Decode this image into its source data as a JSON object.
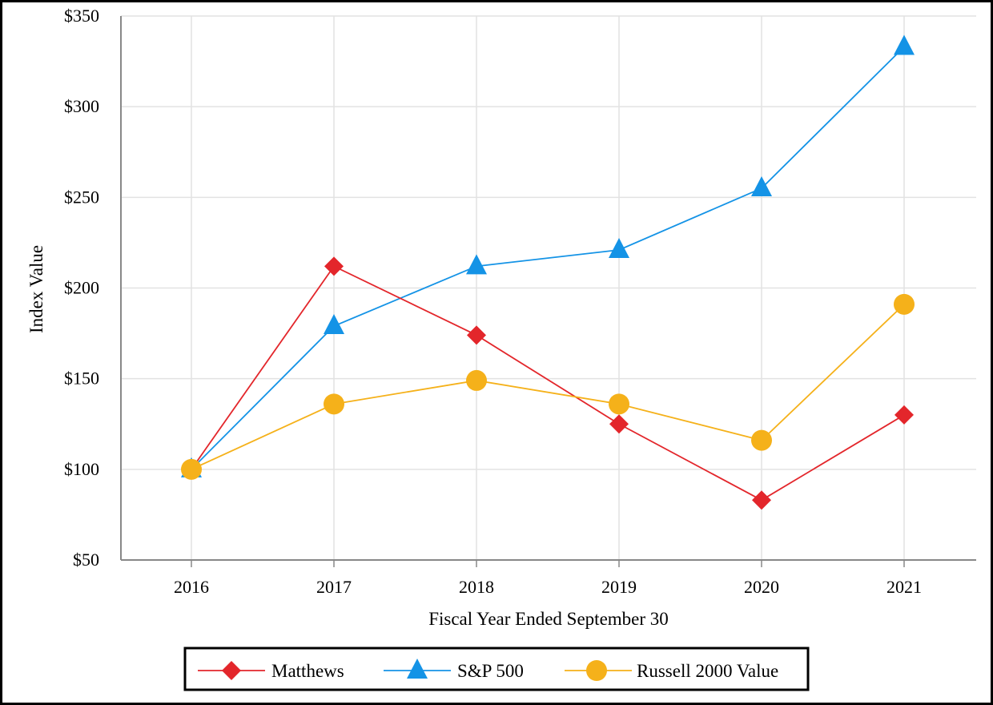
{
  "chart_data": {
    "type": "line",
    "title": "",
    "xlabel": "Fiscal Year Ended September 30",
    "ylabel": "Index Value",
    "categories": [
      "2016",
      "2017",
      "2018",
      "2019",
      "2020",
      "2021"
    ],
    "ylim": [
      50,
      350
    ],
    "yticks": [
      50,
      100,
      150,
      200,
      250,
      300,
      350
    ],
    "ytick_labels": [
      "$50",
      "$100",
      "$150",
      "$200",
      "$250",
      "$300",
      "$350"
    ],
    "grid": true,
    "legend_position": "bottom",
    "series": [
      {
        "name": "Matthews",
        "marker": "diamond",
        "color": "#e3262b",
        "values": [
          100,
          212,
          174,
          125,
          83,
          130
        ]
      },
      {
        "name": "S&P 500",
        "marker": "triangle",
        "color": "#1493e6",
        "values": [
          100,
          179,
          212,
          221,
          255,
          333
        ]
      },
      {
        "name": "Russell 2000 Value",
        "marker": "circle",
        "color": "#f5b11a",
        "values": [
          100,
          136,
          149,
          136,
          116,
          191
        ]
      }
    ]
  }
}
